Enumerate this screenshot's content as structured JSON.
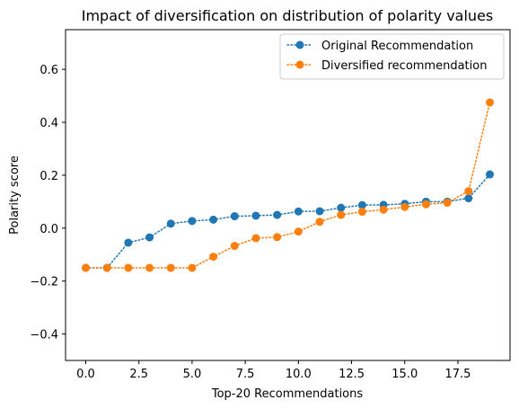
{
  "chart_data": {
    "type": "line",
    "title": "Impact of diversification on distribution of polarity values",
    "xlabel": "Top-20 Recommendations",
    "ylabel": "Polarity score",
    "xlim": [
      -0.95,
      19.95
    ],
    "ylim": [
      -0.5,
      0.75
    ],
    "xticks": [
      0.0,
      2.5,
      5.0,
      7.5,
      10.0,
      12.5,
      15.0,
      17.5
    ],
    "xtick_labels": [
      "0.0",
      "2.5",
      "5.0",
      "7.5",
      "10.0",
      "12.5",
      "15.0",
      "17.5"
    ],
    "yticks": [
      -0.4,
      -0.2,
      0.0,
      0.2,
      0.4,
      0.6
    ],
    "ytick_labels": [
      "−0.4",
      "−0.2",
      "0.0",
      "0.2",
      "0.4",
      "0.6"
    ],
    "grid": false,
    "legend_position": "top-right",
    "x": [
      0,
      1,
      2,
      3,
      4,
      5,
      6,
      7,
      8,
      9,
      10,
      11,
      12,
      13,
      14,
      15,
      16,
      17,
      18,
      19
    ],
    "series": [
      {
        "name": "Original Recommendation",
        "color": "#1f77b4",
        "values": [
          -0.15,
          -0.15,
          -0.055,
          -0.035,
          0.017,
          0.027,
          0.032,
          0.045,
          0.047,
          0.05,
          0.063,
          0.064,
          0.077,
          0.087,
          0.088,
          0.092,
          0.1,
          0.1,
          0.113,
          0.203
        ]
      },
      {
        "name": "Diversified recommendation",
        "color": "#ff7f0e",
        "values": [
          -0.15,
          -0.15,
          -0.15,
          -0.15,
          -0.15,
          -0.15,
          -0.108,
          -0.067,
          -0.038,
          -0.034,
          -0.013,
          0.024,
          0.05,
          0.062,
          0.07,
          0.08,
          0.09,
          0.096,
          0.14,
          0.475
        ]
      }
    ]
  }
}
